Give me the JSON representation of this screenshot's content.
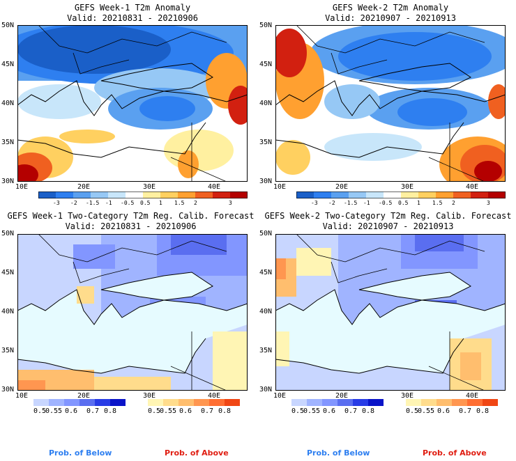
{
  "colors": {
    "land_bg": "#ffffff",
    "sea_fill": "#e6fbff",
    "prob_below": "#2e7ff0",
    "prob_above": "#e01e12",
    "anomaly_scale": [
      "#1a5fc8",
      "#2e7ff0",
      "#5aa0f0",
      "#96c8f5",
      "#c8e6fa",
      "#ffffff",
      "#fff0a0",
      "#ffd060",
      "#ffa030",
      "#f06020",
      "#d22010",
      "#b40000"
    ],
    "below_scale": [
      "#c8d6ff",
      "#a0b4ff",
      "#8296ff",
      "#5a6ef0",
      "#283ce6",
      "#0a14c8"
    ],
    "above_scale": [
      "#fff5b4",
      "#ffdc8c",
      "#ffbe6e",
      "#ff9650",
      "#ff6e32",
      "#f04614"
    ]
  },
  "panels": [
    {
      "id": "p1",
      "title": "GEFS Week-1 T2m Anomaly",
      "valid": "Valid: 20210831 - 20210906",
      "kind": "anomaly",
      "colorbar_ticks": [
        "-3",
        "-2",
        "-1.5",
        "-1",
        "-0.5",
        "0.5",
        "1",
        "1.5",
        "2",
        "3"
      ]
    },
    {
      "id": "p2",
      "title": "GEFS Week-2 T2m Anomaly",
      "valid": "Valid: 20210907 - 20210913",
      "kind": "anomaly",
      "colorbar_ticks": [
        "-3",
        "-2",
        "-1.5",
        "-1",
        "-0.5",
        "0.5",
        "1",
        "1.5",
        "2",
        "3"
      ]
    },
    {
      "id": "p3",
      "title": "GEFS Week-1 Two-Category T2m Reg. Calib. Forecast",
      "valid": "Valid: 20210831 - 20210906",
      "kind": "probability",
      "below_ticks": [
        "0.5",
        "0.55",
        "0.6",
        "0.7",
        "0.8"
      ],
      "above_ticks": [
        "0.5",
        "0.55",
        "0.6",
        "0.7",
        "0.8"
      ],
      "legend_below": "Prob. of Below",
      "legend_above": "Prob. of Above"
    },
    {
      "id": "p4",
      "title": "GEFS Week-2 Two-Category T2m Reg. Calib. Forecast",
      "valid": "Valid: 20210907 - 20210913",
      "kind": "probability",
      "below_ticks": [
        "0.5",
        "0.55",
        "0.6",
        "0.7",
        "0.8"
      ],
      "above_ticks": [
        "0.5",
        "0.55",
        "0.6",
        "0.7",
        "0.8"
      ],
      "legend_below": "Prob. of Below",
      "legend_above": "Prob. of Above"
    }
  ],
  "axes": {
    "lat_labels": [
      "50N",
      "45N",
      "40N",
      "35N",
      "30N"
    ],
    "lon_labels": [
      "10E",
      "20E",
      "30E",
      "40E"
    ],
    "lat_range": [
      30,
      50
    ],
    "lon_range": [
      10,
      45
    ]
  }
}
